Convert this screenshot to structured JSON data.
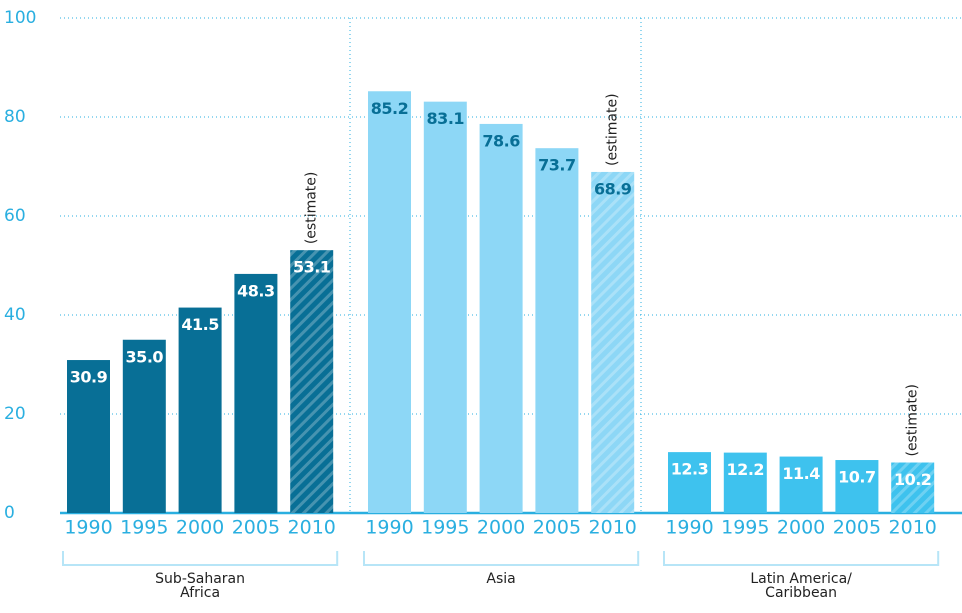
{
  "chart_data": {
    "type": "bar",
    "ylim": [
      0,
      100
    ],
    "yticks": [
      0,
      20,
      40,
      60,
      80,
      100
    ],
    "grid": true,
    "groups": [
      {
        "name": "Sub-Saharan Africa",
        "color": "#086f96",
        "label_color": "#ffffff",
        "categories": [
          "1990",
          "1995",
          "2000",
          "2005",
          "2010"
        ],
        "values": [
          30.9,
          35.0,
          41.5,
          48.3,
          53.1
        ],
        "value_labels": [
          "30.9",
          "35.0",
          "41.5",
          "48.3",
          "53.1"
        ],
        "annotation": "(estimate)"
      },
      {
        "name": "Asia",
        "color": "#8dd7f6",
        "label_color": "#086f96",
        "categories": [
          "1990",
          "1995",
          "2000",
          "2005",
          "2010"
        ],
        "values": [
          85.2,
          83.1,
          78.6,
          73.7,
          68.9
        ],
        "value_labels": [
          "85.2",
          "83.1",
          "78.6",
          "73.7",
          "68.9"
        ],
        "annotation": "(estimate)"
      },
      {
        "name": "Latin America/ Caribbean",
        "color": "#3ec2ee",
        "label_color": "#ffffff",
        "categories": [
          "1990",
          "1995",
          "2000",
          "2005",
          "2010"
        ],
        "values": [
          12.3,
          12.2,
          11.4,
          10.7,
          10.2
        ],
        "value_labels": [
          "12.3",
          "12.2",
          "11.4",
          "10.7",
          "10.2"
        ],
        "annotation": "(estimate)"
      }
    ]
  }
}
